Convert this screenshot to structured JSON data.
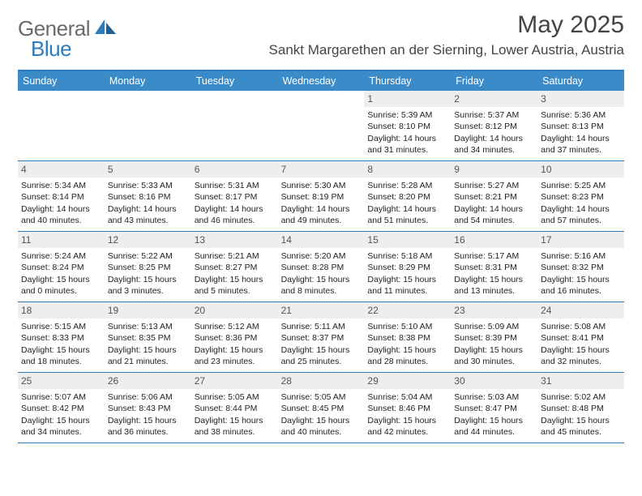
{
  "brand": {
    "part1": "General",
    "part2": "Blue"
  },
  "title": "May 2025",
  "location": "Sankt Margarethen an der Sierning, Lower Austria, Austria",
  "colors": {
    "header_bar": "#3b8bc8",
    "accent_line": "#2b7bbd",
    "daynum_bg": "#eeeeee",
    "text": "#333333",
    "logo_gray": "#6a6a6a",
    "logo_blue": "#2b7bbd"
  },
  "days_of_week": [
    "Sunday",
    "Monday",
    "Tuesday",
    "Wednesday",
    "Thursday",
    "Friday",
    "Saturday"
  ],
  "weeks": [
    [
      {
        "n": "",
        "empty": true
      },
      {
        "n": "",
        "empty": true
      },
      {
        "n": "",
        "empty": true
      },
      {
        "n": "",
        "empty": true
      },
      {
        "n": "1",
        "sunrise": "5:39 AM",
        "sunset": "8:10 PM",
        "daylight": "14 hours and 31 minutes."
      },
      {
        "n": "2",
        "sunrise": "5:37 AM",
        "sunset": "8:12 PM",
        "daylight": "14 hours and 34 minutes."
      },
      {
        "n": "3",
        "sunrise": "5:36 AM",
        "sunset": "8:13 PM",
        "daylight": "14 hours and 37 minutes."
      }
    ],
    [
      {
        "n": "4",
        "sunrise": "5:34 AM",
        "sunset": "8:14 PM",
        "daylight": "14 hours and 40 minutes."
      },
      {
        "n": "5",
        "sunrise": "5:33 AM",
        "sunset": "8:16 PM",
        "daylight": "14 hours and 43 minutes."
      },
      {
        "n": "6",
        "sunrise": "5:31 AM",
        "sunset": "8:17 PM",
        "daylight": "14 hours and 46 minutes."
      },
      {
        "n": "7",
        "sunrise": "5:30 AM",
        "sunset": "8:19 PM",
        "daylight": "14 hours and 49 minutes."
      },
      {
        "n": "8",
        "sunrise": "5:28 AM",
        "sunset": "8:20 PM",
        "daylight": "14 hours and 51 minutes."
      },
      {
        "n": "9",
        "sunrise": "5:27 AM",
        "sunset": "8:21 PM",
        "daylight": "14 hours and 54 minutes."
      },
      {
        "n": "10",
        "sunrise": "5:25 AM",
        "sunset": "8:23 PM",
        "daylight": "14 hours and 57 minutes."
      }
    ],
    [
      {
        "n": "11",
        "sunrise": "5:24 AM",
        "sunset": "8:24 PM",
        "daylight": "15 hours and 0 minutes."
      },
      {
        "n": "12",
        "sunrise": "5:22 AM",
        "sunset": "8:25 PM",
        "daylight": "15 hours and 3 minutes."
      },
      {
        "n": "13",
        "sunrise": "5:21 AM",
        "sunset": "8:27 PM",
        "daylight": "15 hours and 5 minutes."
      },
      {
        "n": "14",
        "sunrise": "5:20 AM",
        "sunset": "8:28 PM",
        "daylight": "15 hours and 8 minutes."
      },
      {
        "n": "15",
        "sunrise": "5:18 AM",
        "sunset": "8:29 PM",
        "daylight": "15 hours and 11 minutes."
      },
      {
        "n": "16",
        "sunrise": "5:17 AM",
        "sunset": "8:31 PM",
        "daylight": "15 hours and 13 minutes."
      },
      {
        "n": "17",
        "sunrise": "5:16 AM",
        "sunset": "8:32 PM",
        "daylight": "15 hours and 16 minutes."
      }
    ],
    [
      {
        "n": "18",
        "sunrise": "5:15 AM",
        "sunset": "8:33 PM",
        "daylight": "15 hours and 18 minutes."
      },
      {
        "n": "19",
        "sunrise": "5:13 AM",
        "sunset": "8:35 PM",
        "daylight": "15 hours and 21 minutes."
      },
      {
        "n": "20",
        "sunrise": "5:12 AM",
        "sunset": "8:36 PM",
        "daylight": "15 hours and 23 minutes."
      },
      {
        "n": "21",
        "sunrise": "5:11 AM",
        "sunset": "8:37 PM",
        "daylight": "15 hours and 25 minutes."
      },
      {
        "n": "22",
        "sunrise": "5:10 AM",
        "sunset": "8:38 PM",
        "daylight": "15 hours and 28 minutes."
      },
      {
        "n": "23",
        "sunrise": "5:09 AM",
        "sunset": "8:39 PM",
        "daylight": "15 hours and 30 minutes."
      },
      {
        "n": "24",
        "sunrise": "5:08 AM",
        "sunset": "8:41 PM",
        "daylight": "15 hours and 32 minutes."
      }
    ],
    [
      {
        "n": "25",
        "sunrise": "5:07 AM",
        "sunset": "8:42 PM",
        "daylight": "15 hours and 34 minutes."
      },
      {
        "n": "26",
        "sunrise": "5:06 AM",
        "sunset": "8:43 PM",
        "daylight": "15 hours and 36 minutes."
      },
      {
        "n": "27",
        "sunrise": "5:05 AM",
        "sunset": "8:44 PM",
        "daylight": "15 hours and 38 minutes."
      },
      {
        "n": "28",
        "sunrise": "5:05 AM",
        "sunset": "8:45 PM",
        "daylight": "15 hours and 40 minutes."
      },
      {
        "n": "29",
        "sunrise": "5:04 AM",
        "sunset": "8:46 PM",
        "daylight": "15 hours and 42 minutes."
      },
      {
        "n": "30",
        "sunrise": "5:03 AM",
        "sunset": "8:47 PM",
        "daylight": "15 hours and 44 minutes."
      },
      {
        "n": "31",
        "sunrise": "5:02 AM",
        "sunset": "8:48 PM",
        "daylight": "15 hours and 45 minutes."
      }
    ]
  ],
  "labels": {
    "sunrise": "Sunrise:",
    "sunset": "Sunset:",
    "daylight": "Daylight:"
  }
}
